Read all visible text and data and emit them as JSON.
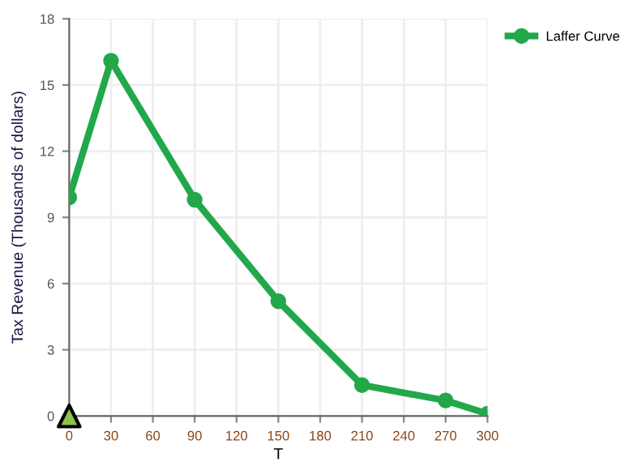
{
  "chart_data": {
    "type": "line",
    "xlabel": "T",
    "ylabel": "Tax Revenue (Thousands of dollars)",
    "xlim": [
      0,
      300
    ],
    "xticks": [
      0,
      30,
      60,
      90,
      120,
      150,
      180,
      210,
      240,
      270,
      300
    ],
    "ylim": [
      0,
      18
    ],
    "yticks": [
      0,
      3,
      6,
      9,
      12,
      15,
      18
    ],
    "grid": true,
    "legend": "top right",
    "series": [
      {
        "name": "Laffer Curve",
        "color": "#22a84a",
        "marker": "circle",
        "x": [
          0,
          30,
          90,
          150,
          210,
          270,
          300
        ],
        "values": [
          9.9,
          16.1,
          9.8,
          5.2,
          1.4,
          0.7,
          0.1
        ]
      },
      {
        "type": "scatter",
        "color": "#8bc34a",
        "marker": "triangle",
        "x": [
          0
        ],
        "values": [
          0
        ]
      }
    ]
  }
}
